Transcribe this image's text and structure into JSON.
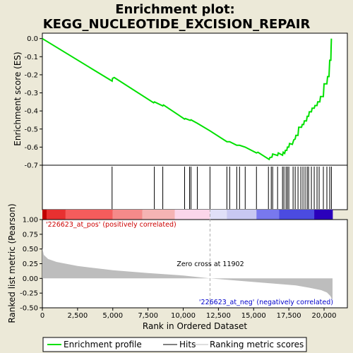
{
  "colors": {
    "background": "#ece9d8",
    "enrichment_line": "#00e000",
    "hits": "#000000",
    "ranking_fill": "#bdbdbd",
    "pos_label": "#cc0000",
    "neg_label": "#0000cc",
    "zero_cross_line": "#aaaaaa"
  },
  "chart_data": {
    "type": "line",
    "title_line1": "Enrichment plot:",
    "title_line2": "KEGG_NUCLEOTIDE_EXCISION_REPAIR",
    "xlabel": "Rank in Ordered Dataset",
    "xlim": [
      0,
      21653
    ],
    "x_ticks": [
      0,
      2500,
      5000,
      7500,
      10000,
      12500,
      15000,
      17500,
      20000
    ],
    "x_tick_labels": [
      "0",
      "2,500",
      "5,000",
      "7,500",
      "10,000",
      "12,500",
      "15,000",
      "17,500",
      "20,000"
    ],
    "es_panel": {
      "ylabel": "Enrichment score (ES)",
      "ylim": [
        -0.7,
        0.03
      ],
      "y_ticks": [
        0.0,
        -0.1,
        -0.2,
        -0.3,
        -0.4,
        -0.5,
        -0.6,
        -0.7
      ],
      "y_tick_labels": [
        "0.0",
        "-0.1",
        "-0.2",
        "-0.3",
        "-0.4",
        "-0.5",
        "-0.6",
        "-0.7"
      ],
      "profile": [
        [
          0,
          0.0
        ],
        [
          4950,
          -0.235
        ],
        [
          4980,
          -0.22
        ],
        [
          5100,
          -0.215
        ],
        [
          7900,
          -0.355
        ],
        [
          7960,
          -0.35
        ],
        [
          8550,
          -0.372
        ],
        [
          8600,
          -0.367
        ],
        [
          10100,
          -0.445
        ],
        [
          10150,
          -0.442
        ],
        [
          10500,
          -0.452
        ],
        [
          10550,
          -0.449
        ],
        [
          11000,
          -0.468
        ],
        [
          11900,
          -0.51
        ],
        [
          13100,
          -0.57
        ],
        [
          13300,
          -0.57
        ],
        [
          13800,
          -0.59
        ],
        [
          14000,
          -0.59
        ],
        [
          14400,
          -0.6
        ],
        [
          15200,
          -0.632
        ],
        [
          15300,
          -0.628
        ],
        [
          16100,
          -0.668
        ],
        [
          16150,
          -0.658
        ],
        [
          16300,
          -0.655
        ],
        [
          16350,
          -0.638
        ],
        [
          16700,
          -0.646
        ],
        [
          16750,
          -0.632
        ],
        [
          17050,
          -0.645
        ],
        [
          17100,
          -0.628
        ],
        [
          17200,
          -0.635
        ],
        [
          17250,
          -0.618
        ],
        [
          17350,
          -0.618
        ],
        [
          17400,
          -0.6
        ],
        [
          17500,
          -0.6
        ],
        [
          17550,
          -0.58
        ],
        [
          17750,
          -0.585
        ],
        [
          17850,
          -0.56
        ],
        [
          17950,
          -0.555
        ],
        [
          18000,
          -0.535
        ],
        [
          18150,
          -0.535
        ],
        [
          18200,
          -0.49
        ],
        [
          18400,
          -0.49
        ],
        [
          18450,
          -0.475
        ],
        [
          18550,
          -0.475
        ],
        [
          18600,
          -0.455
        ],
        [
          18750,
          -0.455
        ],
        [
          18800,
          -0.43
        ],
        [
          18900,
          -0.43
        ],
        [
          18950,
          -0.405
        ],
        [
          19100,
          -0.405
        ],
        [
          19150,
          -0.385
        ],
        [
          19300,
          -0.385
        ],
        [
          19350,
          -0.37
        ],
        [
          19500,
          -0.37
        ],
        [
          19550,
          -0.35
        ],
        [
          19700,
          -0.35
        ],
        [
          19750,
          -0.32
        ],
        [
          19950,
          -0.32
        ],
        [
          20000,
          -0.25
        ],
        [
          20200,
          -0.25
        ],
        [
          20250,
          -0.21
        ],
        [
          20350,
          -0.21
        ],
        [
          20400,
          -0.12
        ],
        [
          20480,
          -0.12
        ],
        [
          20500,
          -0.05
        ],
        [
          20520,
          0.0
        ]
      ]
    },
    "hits": [
      4950,
      7950,
      8550,
      10100,
      10450,
      10550,
      11000,
      11900,
      13100,
      13300,
      13800,
      14000,
      14400,
      15200,
      16050,
      16250,
      16350,
      16700,
      17050,
      17150,
      17300,
      17400,
      17500,
      17800,
      17950,
      18150,
      18350,
      18500,
      18650,
      18800,
      18900,
      19100,
      19300,
      19500,
      19650,
      19950,
      20200,
      20400,
      20520
    ],
    "ranking_panel": {
      "ylabel": "Ranked list metric (Pearson)",
      "ylim": [
        -0.5,
        1.0
      ],
      "y_ticks": [
        1.0,
        0.75,
        0.5,
        0.25,
        0.0,
        -0.25,
        -0.5
      ],
      "y_tick_labels": [
        "1.00",
        "0.75",
        "0.50",
        "0.25",
        "0.00",
        "-0.25",
        "-0.50"
      ],
      "metric": [
        [
          0,
          0.52
        ],
        [
          100,
          0.4
        ],
        [
          400,
          0.33
        ],
        [
          1000,
          0.28
        ],
        [
          2500,
          0.21
        ],
        [
          5000,
          0.14
        ],
        [
          7500,
          0.09
        ],
        [
          10000,
          0.05
        ],
        [
          11902,
          0.0
        ],
        [
          14000,
          -0.04
        ],
        [
          16000,
          -0.08
        ],
        [
          18000,
          -0.12
        ],
        [
          19000,
          -0.16
        ],
        [
          19800,
          -0.2
        ],
        [
          20200,
          -0.24
        ],
        [
          20450,
          -0.3
        ],
        [
          20550,
          -0.35
        ],
        [
          20600,
          -0.36
        ]
      ],
      "pos_label": "'226623_at_pos' (positively correlated)",
      "neg_label": "'226623_at_neg' (negatively correlated)",
      "zero_cross_label": "Zero cross at 11902",
      "zero_cross_x": 11902
    },
    "heat_bar": [
      [
        0,
        300,
        "#c00000"
      ],
      [
        300,
        1650,
        "#e83030"
      ],
      [
        1650,
        5000,
        "#f55c5c"
      ],
      [
        5000,
        7100,
        "#f58a8a"
      ],
      [
        7100,
        9400,
        "#f5b3b3"
      ],
      [
        9400,
        11900,
        "#fbd6ea"
      ],
      [
        11900,
        13100,
        "#e0e0f8"
      ],
      [
        13100,
        15200,
        "#c8c8f2"
      ],
      [
        15200,
        16800,
        "#7878ee"
      ],
      [
        16800,
        19300,
        "#4b4be0"
      ],
      [
        19300,
        20620,
        "#2a00bb"
      ]
    ],
    "legend": [
      "Enrichment profile",
      "Hits",
      "Ranking metric scores"
    ]
  }
}
